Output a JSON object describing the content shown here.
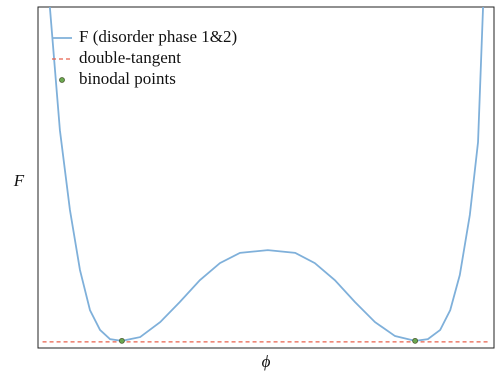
{
  "chart_data": {
    "type": "line",
    "xlabel": "ϕ",
    "ylabel": "F",
    "xlim": [
      0,
      1
    ],
    "ylim": [
      0,
      1
    ],
    "legend": "upper left",
    "series": [
      {
        "name": "F (disorder phase 1&2)",
        "color": "#7fb0da",
        "style": "solid",
        "x": [
          0.026,
          0.048,
          0.07,
          0.092,
          0.114,
          0.136,
          0.158,
          0.184,
          0.224,
          0.268,
          0.311,
          0.355,
          0.399,
          0.443,
          0.504,
          0.564,
          0.607,
          0.651,
          0.695,
          0.739,
          0.783,
          0.827,
          0.855,
          0.882,
          0.904,
          0.925,
          0.947,
          0.965,
          0.976
        ],
        "values": [
          1.0,
          0.639,
          0.405,
          0.229,
          0.111,
          0.053,
          0.026,
          0.021,
          0.032,
          0.076,
          0.135,
          0.199,
          0.249,
          0.279,
          0.287,
          0.279,
          0.249,
          0.199,
          0.135,
          0.076,
          0.035,
          0.021,
          0.026,
          0.053,
          0.111,
          0.214,
          0.39,
          0.604,
          1.0
        ]
      },
      {
        "name": "double-tangent",
        "color": "#e8604c",
        "style": "dashed",
        "x": [
          0.01,
          0.99
        ],
        "values": [
          0.018,
          0.018
        ]
      },
      {
        "name": "binodal points",
        "color": "#6aa84f",
        "style": "markers",
        "x": [
          0.184,
          0.827
        ],
        "values": [
          0.021,
          0.021
        ]
      }
    ]
  }
}
